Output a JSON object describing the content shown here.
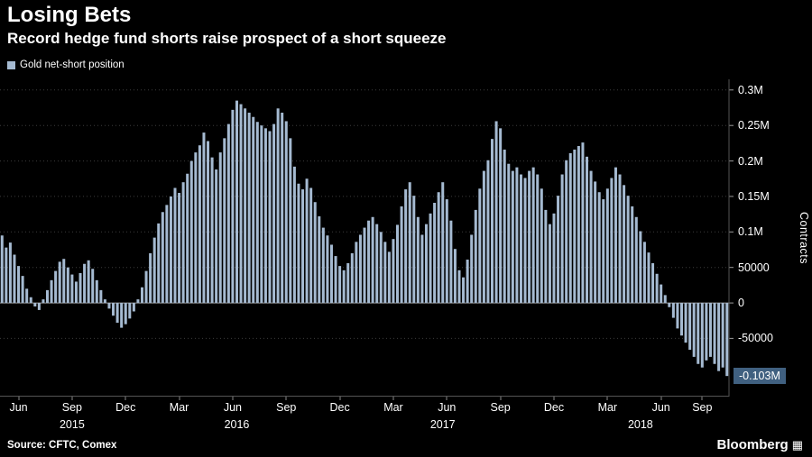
{
  "header": {
    "title": "Losing Bets",
    "subtitle": "Record hedge fund shorts raise prospect of a short squeeze"
  },
  "legend": {
    "label": "Gold net-short position",
    "swatch_color": "#a5bad1"
  },
  "axis": {
    "y_title": "Contracts"
  },
  "footer": {
    "source": "Source: CFTC, Comex",
    "brand": "Bloomberg",
    "brand_icon": "▦"
  },
  "chart_data": {
    "type": "bar",
    "title": "Losing Bets",
    "subtitle": "Record hedge fund shorts raise prospect of a short squeeze",
    "series_name": "Gold net-short position",
    "ylabel": "Contracts",
    "xlabel": "",
    "ylim": [
      -132000,
      315000
    ],
    "grid": true,
    "bar_color": "#a5bad1",
    "background_color": "#000000",
    "current_value": -103000,
    "current_value_label": "-0.103M",
    "current_label_bg": "#406080",
    "yticks": [
      {
        "value": 300000,
        "label": "0.3M"
      },
      {
        "value": 250000,
        "label": "0.25M"
      },
      {
        "value": 200000,
        "label": "0.2M"
      },
      {
        "value": 150000,
        "label": "0.15M"
      },
      {
        "value": 100000,
        "label": "0.1M"
      },
      {
        "value": 50000,
        "label": "50000"
      },
      {
        "value": 0,
        "label": "0"
      },
      {
        "value": -50000,
        "label": "-50000"
      }
    ],
    "xticks": [
      {
        "index": 4,
        "label": "Jun"
      },
      {
        "index": 17,
        "label": "Sep"
      },
      {
        "index": 30,
        "label": "Dec"
      },
      {
        "index": 43,
        "label": "Mar"
      },
      {
        "index": 56,
        "label": "Jun"
      },
      {
        "index": 69,
        "label": "Sep"
      },
      {
        "index": 82,
        "label": "Dec"
      },
      {
        "index": 95,
        "label": "Mar"
      },
      {
        "index": 108,
        "label": "Jun"
      },
      {
        "index": 121,
        "label": "Sep"
      },
      {
        "index": 134,
        "label": "Dec"
      },
      {
        "index": 147,
        "label": "Mar"
      },
      {
        "index": 160,
        "label": "Jun"
      },
      {
        "index": 170,
        "label": "Sep"
      }
    ],
    "year_labels": [
      {
        "index": 17,
        "label": "2015"
      },
      {
        "index": 57,
        "label": "2016"
      },
      {
        "index": 107,
        "label": "2017"
      },
      {
        "index": 155,
        "label": "2018"
      }
    ],
    "values": [
      95000,
      78000,
      85000,
      68000,
      52000,
      38000,
      20000,
      8000,
      -5000,
      -10000,
      5000,
      18000,
      32000,
      45000,
      58000,
      62000,
      50000,
      40000,
      30000,
      42000,
      55000,
      60000,
      48000,
      32000,
      18000,
      5000,
      -8000,
      -18000,
      -28000,
      -35000,
      -30000,
      -22000,
      -12000,
      5000,
      22000,
      45000,
      70000,
      92000,
      112000,
      128000,
      138000,
      150000,
      162000,
      155000,
      170000,
      182000,
      200000,
      212000,
      222000,
      240000,
      228000,
      205000,
      188000,
      212000,
      232000,
      252000,
      272000,
      285000,
      280000,
      274000,
      268000,
      262000,
      255000,
      250000,
      246000,
      242000,
      252000,
      274000,
      268000,
      256000,
      232000,
      192000,
      168000,
      160000,
      175000,
      162000,
      142000,
      122000,
      106000,
      95000,
      82000,
      66000,
      52000,
      46000,
      56000,
      70000,
      86000,
      96000,
      106000,
      116000,
      121000,
      111000,
      100000,
      86000,
      72000,
      90000,
      110000,
      136000,
      160000,
      170000,
      151000,
      121000,
      96000,
      111000,
      126000,
      141000,
      156000,
      170000,
      146000,
      116000,
      76000,
      46000,
      36000,
      61000,
      96000,
      131000,
      161000,
      186000,
      201000,
      231000,
      256000,
      246000,
      216000,
      196000,
      186000,
      191000,
      181000,
      176000,
      186000,
      191000,
      181000,
      161000,
      131000,
      111000,
      126000,
      151000,
      181000,
      201000,
      211000,
      216000,
      221000,
      226000,
      206000,
      186000,
      171000,
      156000,
      146000,
      161000,
      176000,
      191000,
      181000,
      166000,
      151000,
      136000,
      121000,
      101000,
      86000,
      71000,
      56000,
      41000,
      26000,
      11000,
      -6000,
      -21000,
      -36000,
      -46000,
      -56000,
      -66000,
      -76000,
      -86000,
      -91000,
      -81000,
      -76000,
      -86000,
      -96000,
      -91000,
      -103000
    ]
  }
}
